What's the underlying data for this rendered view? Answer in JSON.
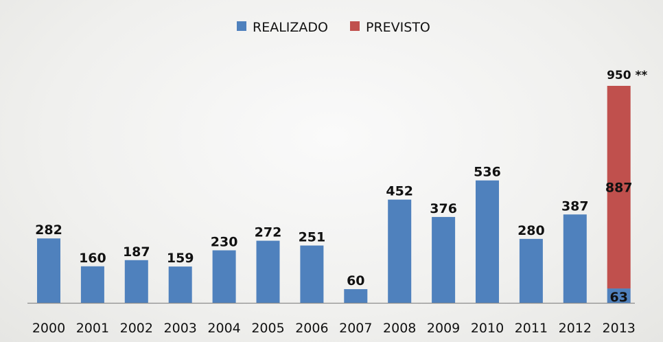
{
  "chart_data": {
    "type": "bar",
    "stacked": true,
    "categories": [
      "2000",
      "2001",
      "2002",
      "2003",
      "2004",
      "2005",
      "2006",
      "2007",
      "2008",
      "2009",
      "2010",
      "2011",
      "2012",
      "2013"
    ],
    "series": [
      {
        "name": "REALIZADO",
        "color": "#4f81bd",
        "values": [
          282,
          160,
          187,
          159,
          230,
          272,
          251,
          60,
          452,
          376,
          536,
          280,
          387,
          63
        ]
      },
      {
        "name": "PREVISTO",
        "color": "#c0504d",
        "values": [
          0,
          0,
          0,
          0,
          0,
          0,
          0,
          0,
          0,
          0,
          0,
          0,
          0,
          887
        ]
      }
    ],
    "annotations": [
      {
        "category": "2013",
        "text": "950 **"
      }
    ],
    "legend": "top",
    "ylim": [
      0,
      950
    ],
    "grid": false,
    "title": "",
    "xlabel": "",
    "ylabel": ""
  }
}
